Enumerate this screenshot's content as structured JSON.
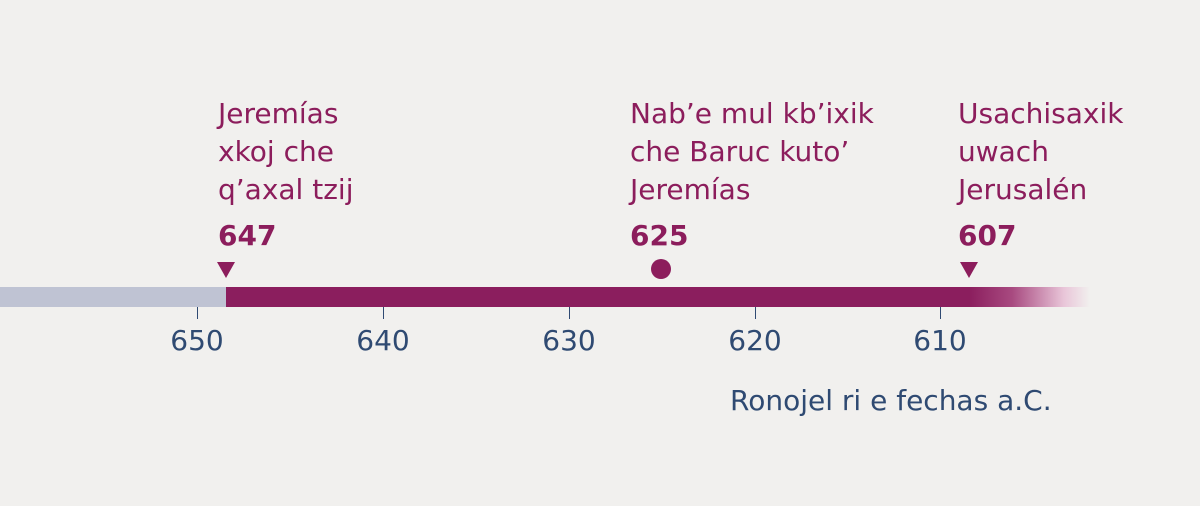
{
  "events": [
    {
      "lines": [
        "Jeremías",
        "xkoj che",
        "q’axal tzij"
      ],
      "year": "647",
      "marker": "triangle"
    },
    {
      "lines": [
        "Nab’e mul kb’ixik",
        "che Baruc kuto’",
        "Jeremías"
      ],
      "year": "625",
      "marker": "dot"
    },
    {
      "lines": [
        "Usachisaxik",
        "uwach",
        "Jerusalén"
      ],
      "year": "607",
      "marker": "triangle"
    }
  ],
  "axis": {
    "ticks": [
      "650",
      "640",
      "630",
      "620",
      "610"
    ],
    "caption": "Ronojel ri e fechas a.C."
  },
  "colors": {
    "accent": "#8c1d5c",
    "axis_text": "#2f4a72",
    "pre_bar": "#bfc3d3",
    "background": "#f1f0ee"
  }
}
